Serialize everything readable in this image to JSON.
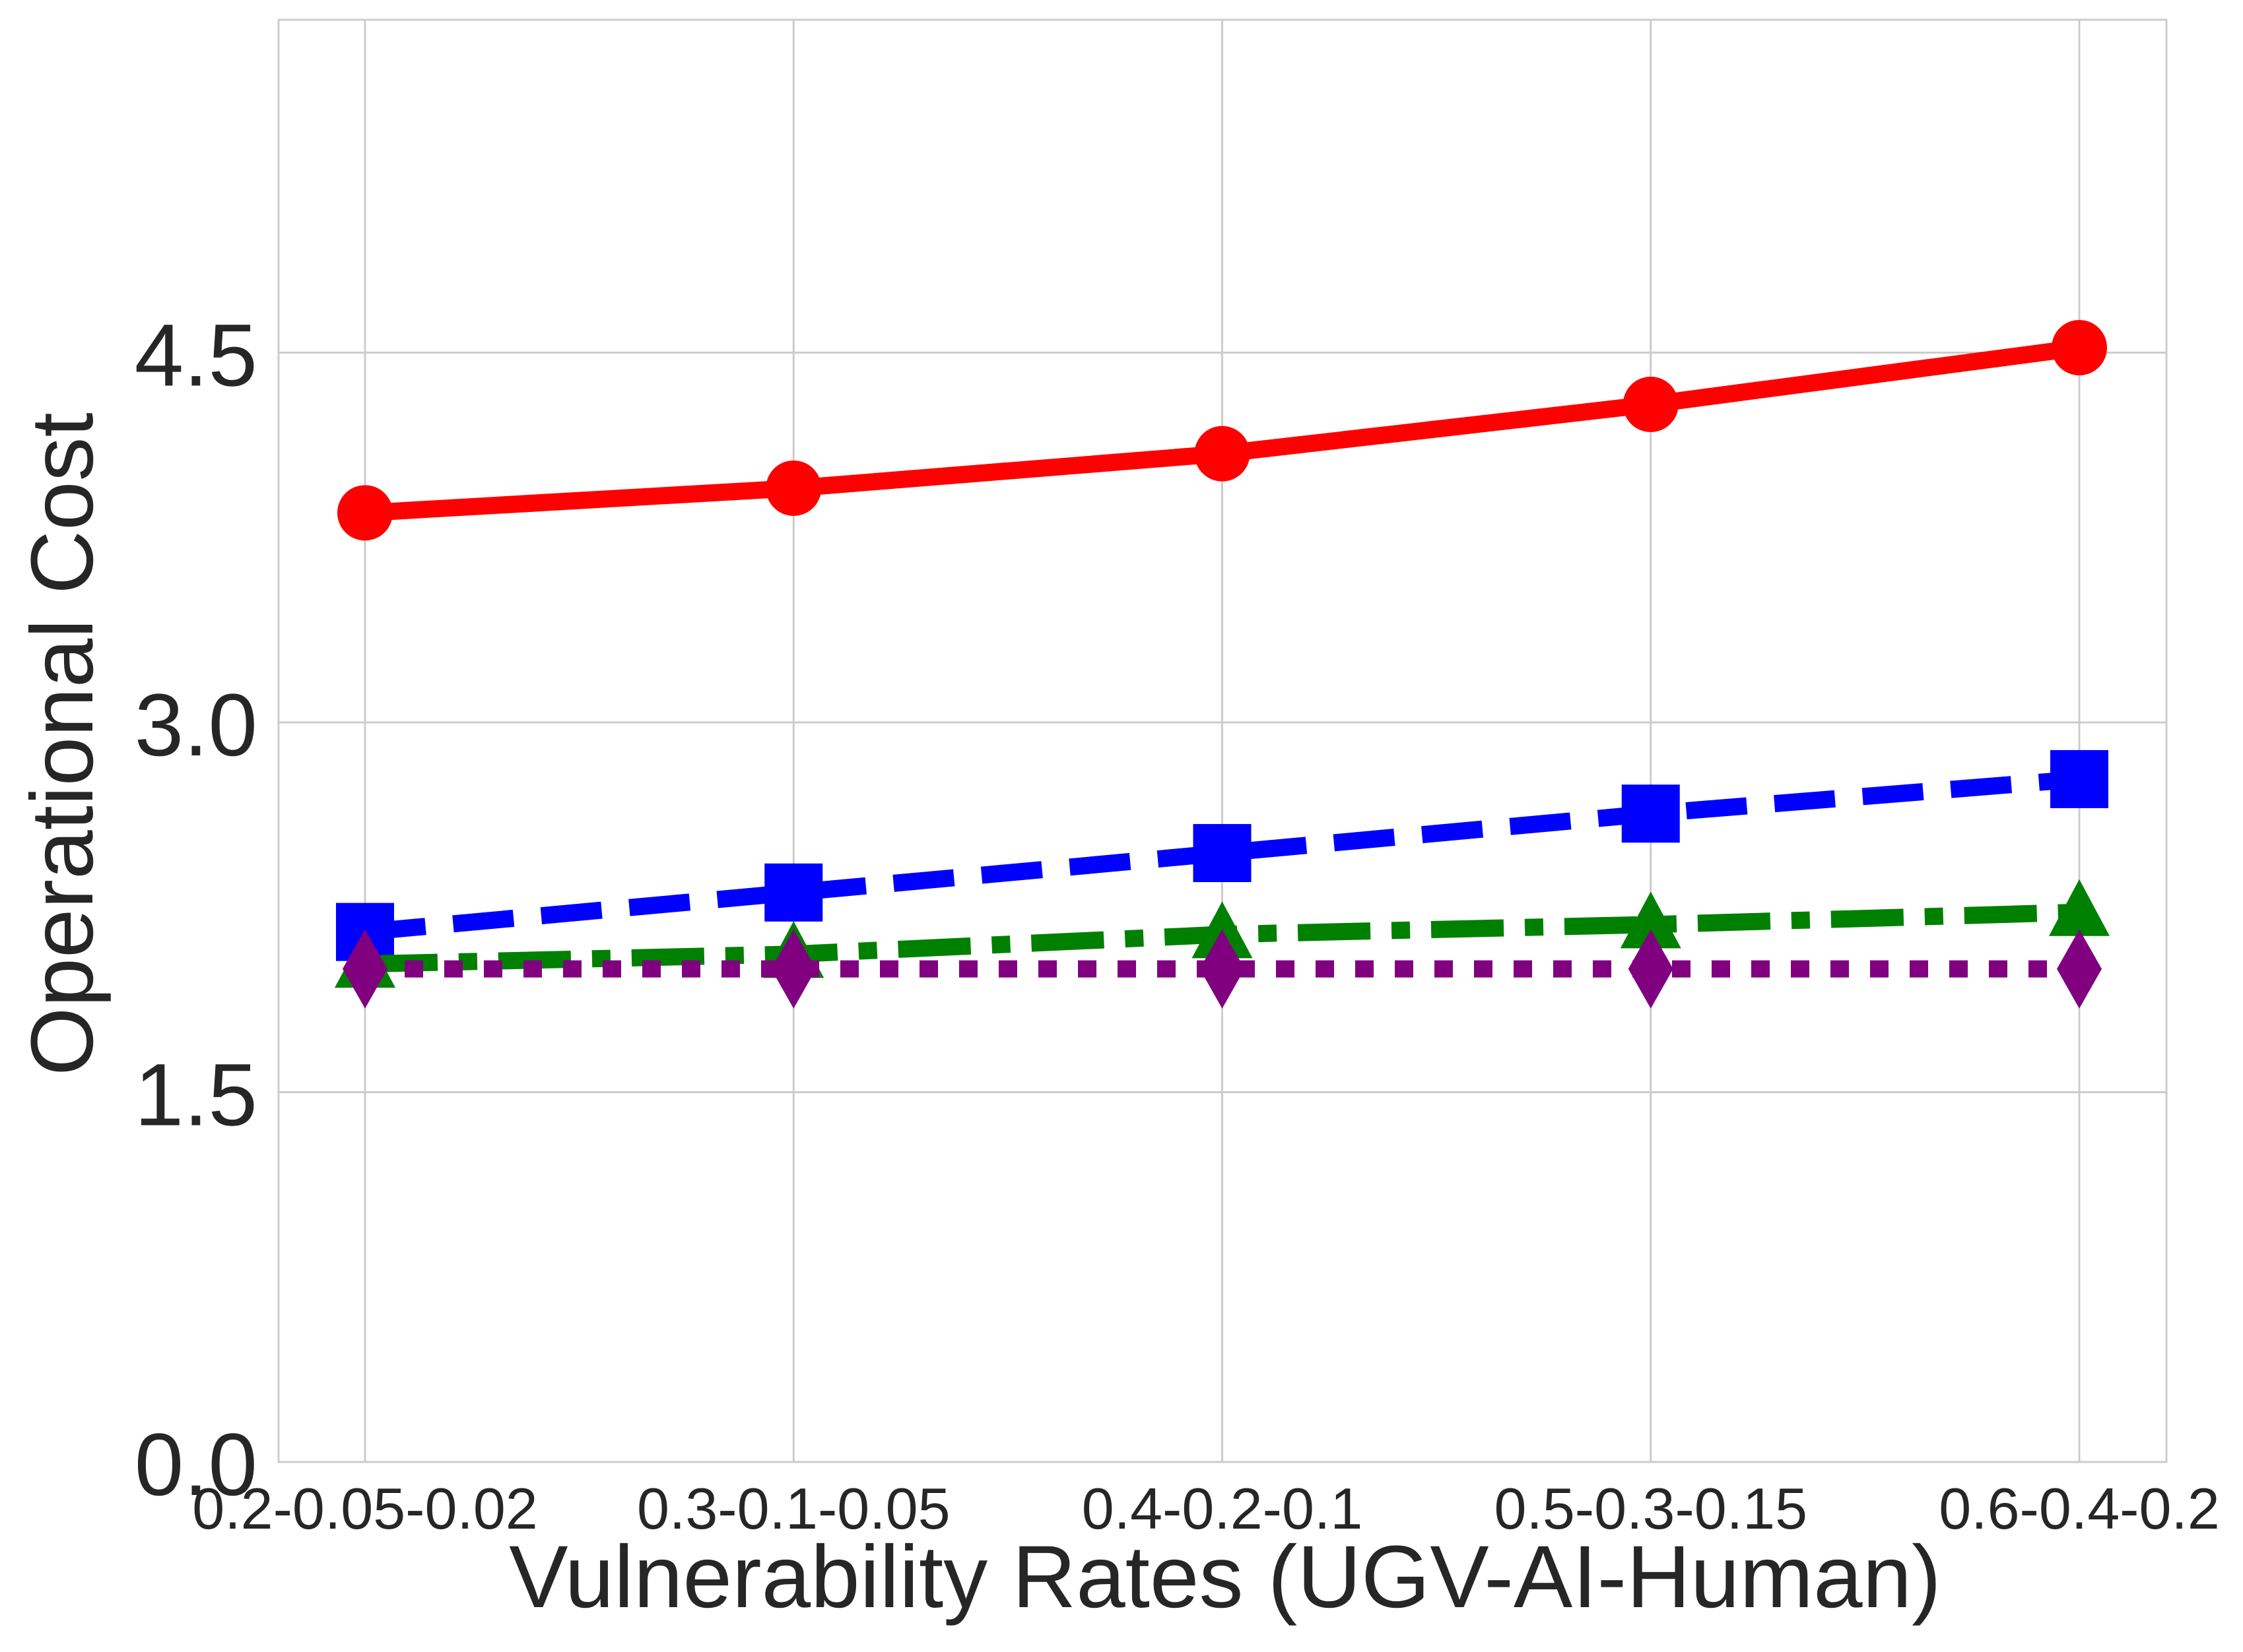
{
  "chart_data": {
    "type": "line",
    "title": "",
    "xlabel": "Vulnerability Rates (UGV-AI-Human)",
    "ylabel": "Operational Cost",
    "categories": [
      "0.2-0.05-0.02",
      "0.3-0.1-0.05",
      "0.4-0.2-0.1",
      "0.5-0.3-0.15",
      "0.6-0.4-0.2"
    ],
    "ylim": [
      0,
      5.85
    ],
    "yticks": [
      "0.0",
      "1.5",
      "3.0",
      "4.5"
    ],
    "grid": true,
    "legend": "none",
    "series": [
      {
        "values": [
          3.85,
          3.95,
          4.09,
          4.29,
          4.52
        ],
        "color": "#ff0000",
        "line_style": "solid",
        "marker": "circle"
      },
      {
        "values": [
          2.15,
          2.31,
          2.47,
          2.63,
          2.77
        ],
        "color": "#0000ff",
        "line_style": "dashed",
        "marker": "square"
      },
      {
        "values": [
          2.02,
          2.06,
          2.14,
          2.18,
          2.23
        ],
        "color": "#008000",
        "line_style": "dashdot",
        "marker": "triangle"
      },
      {
        "values": [
          2.0,
          2.0,
          2.0,
          2.0,
          2.0
        ],
        "color": "#800080",
        "line_style": "dotted",
        "marker": "diamond"
      }
    ]
  }
}
